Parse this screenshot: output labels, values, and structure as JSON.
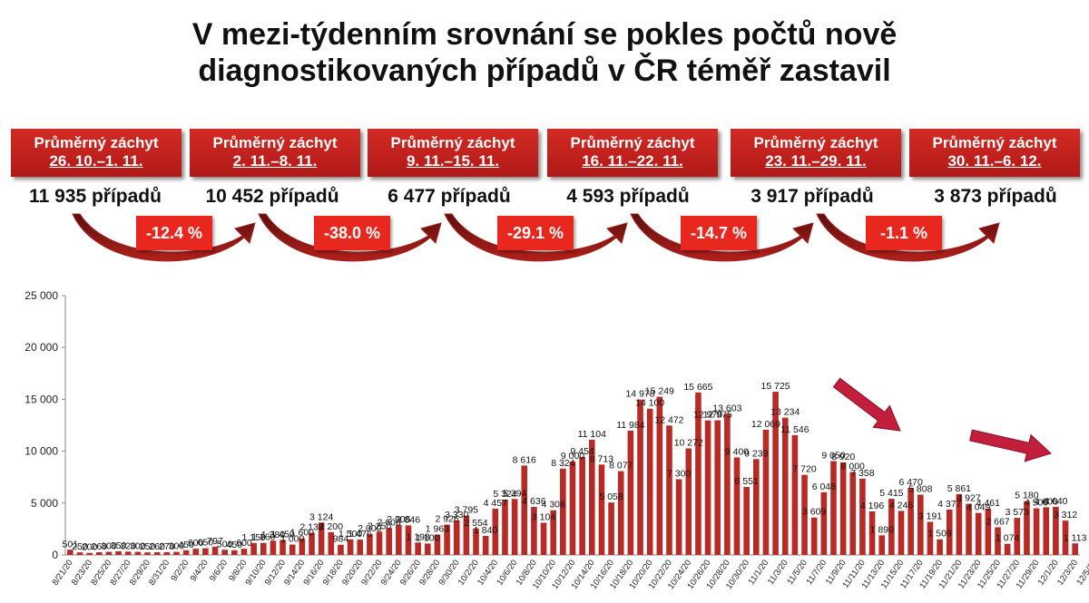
{
  "title_line1": "V mezi-týdenním srovnání se pokles počtů nově",
  "title_line2": "diagnostikovaných případů v ČR téměř zastavil",
  "periods": [
    {
      "label": "Průměrný záchyt",
      "range": "26. 10.–1. 11.",
      "count": "11 935 případů"
    },
    {
      "label": "Průměrný záchyt",
      "range": "2. 11.–8. 11.",
      "count": "10 452 případů"
    },
    {
      "label": "Průměrný záchyt",
      "range": "9. 11.–15. 11.",
      "count": "6 477 případů"
    },
    {
      "label": "Průměrný záchyt",
      "range": "16. 11.–22. 11.",
      "count": "4 593 případů"
    },
    {
      "label": "Průměrný záchyt",
      "range": "23. 11.–29. 11.",
      "count": "3 917 případů"
    },
    {
      "label": "Průměrný záchyt",
      "range": "30. 11.–6. 12.",
      "count": "3 873 případů"
    }
  ],
  "changes": [
    "-12.4 %",
    "-38.0 %",
    "-29.1 %",
    "-14.7 %",
    "-1.1 %"
  ],
  "colors": {
    "bar": "#b72a25",
    "box": "#c0211c",
    "pct": "#e8281f",
    "arrow": "#a01e1a"
  },
  "chart_data": {
    "type": "bar",
    "ylim": [
      0,
      25000
    ],
    "yticks": [
      "0",
      "5 000",
      "10 000",
      "15 000",
      "20 000",
      "25 000"
    ],
    "ytick_values": [
      0,
      5000,
      10000,
      15000,
      20000,
      25000
    ],
    "xtick_labels": [
      "8/21/20",
      "8/23/20",
      "8/25/20",
      "8/27/20",
      "8/29/20",
      "8/31/20",
      "9/2/20",
      "9/4/20",
      "9/6/20",
      "9/8/20",
      "9/10/20",
      "9/12/20",
      "9/14/20",
      "9/16/20",
      "9/18/20",
      "9/20/20",
      "9/22/20",
      "9/24/20",
      "9/26/20",
      "9/28/20",
      "9/30/20",
      "10/2/20",
      "10/4/20",
      "10/6/20",
      "10/8/20",
      "10/10/20",
      "10/12/20",
      "10/14/20",
      "10/16/20",
      "10/18/20",
      "10/20/20",
      "10/22/20",
      "10/24/20",
      "10/26/20",
      "10/28/20",
      "10/30/20",
      "11/1/20",
      "11/3/20",
      "11/5/20",
      "11/7/20",
      "11/9/20",
      "11/11/20",
      "11/13/20",
      "11/15/20",
      "11/17/20",
      "11/19/20",
      "11/21/20",
      "11/23/20",
      "11/25/20",
      "11/27/20",
      "11/29/20",
      "12/1/20",
      "12/3/20",
      "12/5/20"
    ],
    "values": [
      501,
      250,
      200,
      260,
      300,
      350,
      320,
      300,
      250,
      260,
      270,
      300,
      450,
      600,
      650,
      797,
      500,
      450,
      600,
      1150,
      1160,
      1380,
      1450,
      1000,
      1600,
      2138,
      3124,
      2200,
      984,
      1500,
      1476,
      2000,
      2250,
      2600,
      2905,
      2846,
      1198,
      1100,
      1963,
      2926,
      3330,
      3795,
      2554,
      1840,
      4457,
      5324,
      5394,
      8616,
      4636,
      3104,
      4308,
      8324,
      9000,
      9454,
      11104,
      8713,
      5058,
      8077,
      11984,
      14978,
      14100,
      15249,
      12472,
      7300,
      10272,
      15665,
      12970,
      12975,
      13603,
      9400,
      6551,
      9239,
      12069,
      15725,
      13234,
      11546,
      7720,
      3609,
      6048,
      9050,
      8920,
      8000,
      7358,
      4196,
      1890,
      5415,
      4246,
      6470,
      5808,
      3191,
      1509,
      4377,
      5861,
      4927,
      4049,
      4461,
      2667,
      1074,
      3573,
      5180,
      4500,
      4600,
      4640,
      3312,
      1113
    ],
    "labels": [
      "501",
      "250",
      "200",
      "260",
      "300",
      "350",
      "320",
      "300",
      "250",
      "260",
      "270",
      "300",
      "450",
      "600",
      "650",
      "797",
      "500",
      "450",
      "600",
      "1 150",
      "1 160",
      "1 380",
      "1 450",
      "1 000",
      "1 600",
      "2 138",
      "3 124",
      "2 200",
      "984",
      "1 500",
      "1 476",
      "2 000",
      "2 250",
      "2 600",
      "2 905",
      "2 846",
      "1 198",
      "1 100",
      "1 963",
      "2 926",
      "3 330",
      "3 795",
      "2 554",
      "1 840",
      "4 457",
      "5 324",
      "5 394",
      "8 616",
      "4 636",
      "3 104",
      "4 308",
      "8 324",
      "9 000",
      "9 454",
      "11 104",
      "8 713",
      "5 058",
      "8 077",
      "11 984",
      "14 978",
      "14 100",
      "15 249",
      "12 472",
      "7 300",
      "10 272",
      "15 665",
      "12 970",
      "12 975",
      "13 603",
      "9 400",
      "6 551",
      "9 239",
      "12 069",
      "15 725",
      "13 234",
      "11 546",
      "7 720",
      "3 609",
      "6 048",
      "9 050",
      "8 920",
      "8 000",
      "7 358",
      "4 196",
      "1 890",
      "5 415",
      "4 246",
      "6 470",
      "5 808",
      "3 191",
      "1 509",
      "4 377",
      "5 861",
      "4 927",
      "4 049",
      "4 461",
      "2 667",
      "1 074",
      "3 573",
      "5 180",
      "4 500",
      "4 600",
      "4 640",
      "3 312",
      "1 113"
    ]
  }
}
